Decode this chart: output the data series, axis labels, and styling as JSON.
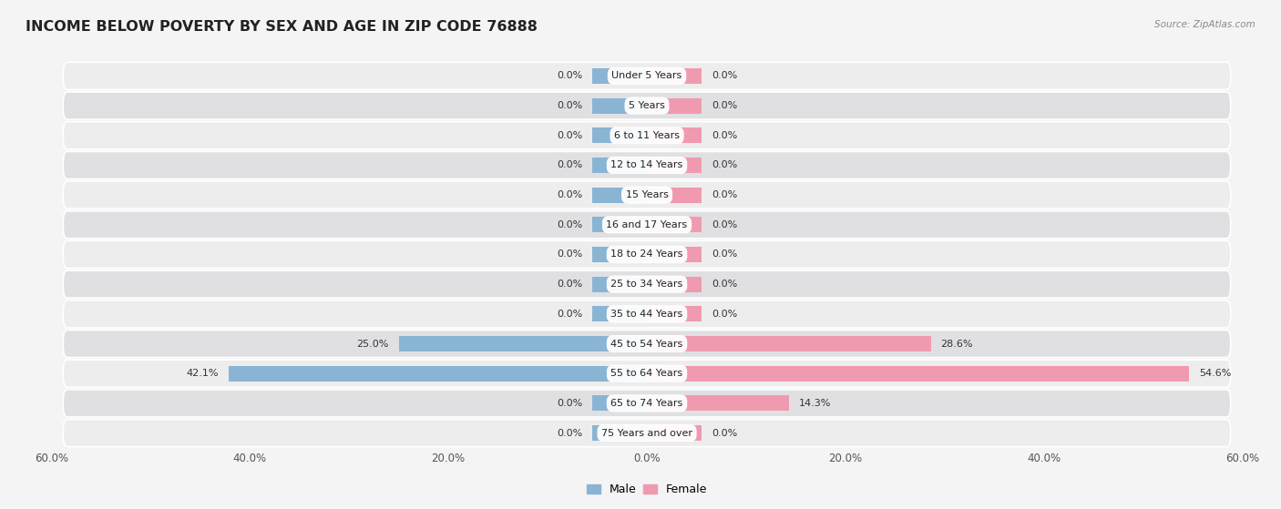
{
  "title": "INCOME BELOW POVERTY BY SEX AND AGE IN ZIP CODE 76888",
  "source": "Source: ZipAtlas.com",
  "categories": [
    "Under 5 Years",
    "5 Years",
    "6 to 11 Years",
    "12 to 14 Years",
    "15 Years",
    "16 and 17 Years",
    "18 to 24 Years",
    "25 to 34 Years",
    "35 to 44 Years",
    "45 to 54 Years",
    "55 to 64 Years",
    "65 to 74 Years",
    "75 Years and over"
  ],
  "male_values": [
    0.0,
    0.0,
    0.0,
    0.0,
    0.0,
    0.0,
    0.0,
    0.0,
    0.0,
    25.0,
    42.1,
    0.0,
    0.0
  ],
  "female_values": [
    0.0,
    0.0,
    0.0,
    0.0,
    0.0,
    0.0,
    0.0,
    0.0,
    0.0,
    28.6,
    54.6,
    14.3,
    0.0
  ],
  "male_color": "#8ab4d4",
  "female_color": "#f09ab0",
  "male_label": "Male",
  "female_label": "Female",
  "xlim": 60.0,
  "stub_size": 5.5,
  "bar_height": 0.52,
  "row_bg_light": "#ededee",
  "row_bg_dark": "#e0e0e2",
  "fig_bg": "#f4f4f5",
  "title_fontsize": 11.5,
  "value_fontsize": 8,
  "category_fontsize": 8,
  "axis_fontsize": 8.5
}
